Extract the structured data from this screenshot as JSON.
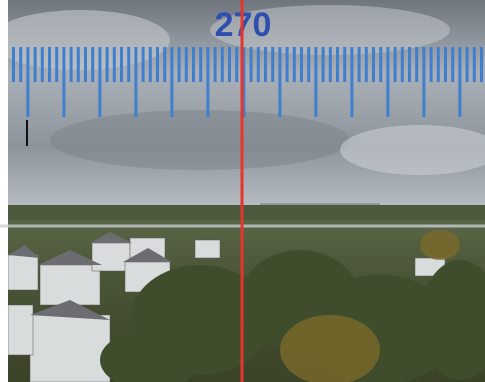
{
  "heading": {
    "label": "270"
  }
}
